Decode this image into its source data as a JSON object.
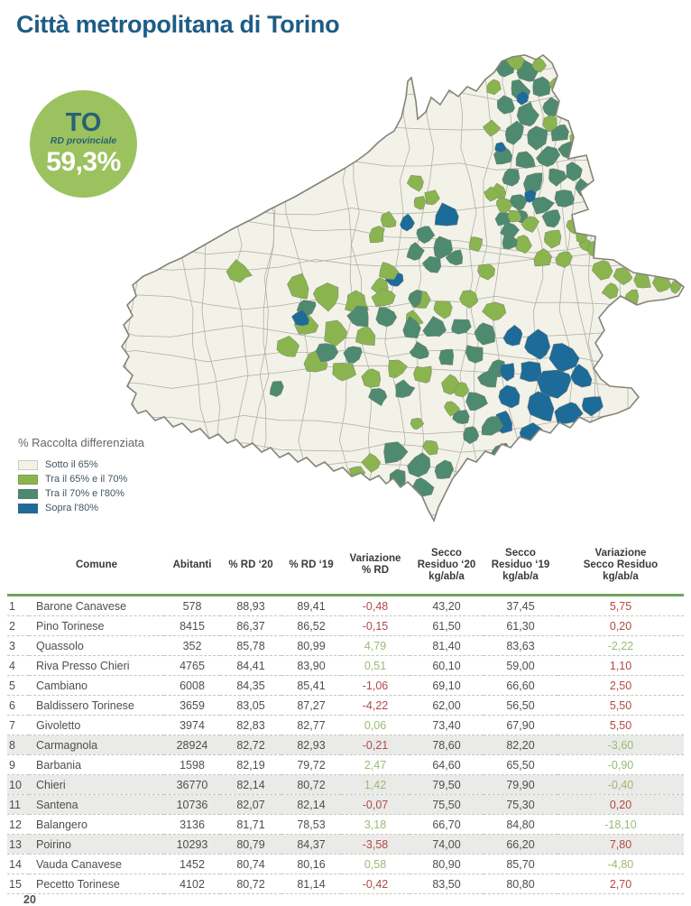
{
  "page": {
    "title": "Città metropolitana di Torino",
    "page_number": "20"
  },
  "badge": {
    "code": "TO",
    "label": "RD provinciale",
    "value": "59,3%"
  },
  "legend": {
    "title": "% Raccolta differenziata",
    "items": [
      {
        "label": "Sotto il 65%",
        "color": "#f2f2e8"
      },
      {
        "label": "Tra il 65% e il 70%",
        "color": "#8ab54e"
      },
      {
        "label": "Tra il 70% e l'80%",
        "color": "#4d8a6f"
      },
      {
        "label": "Sopra l'80%",
        "color": "#1d6b99"
      }
    ]
  },
  "map": {
    "region": "Città metropolitana di Torino"
  },
  "colors": {
    "title_blue": "#1d5c85",
    "badge_green": "#9cc25f",
    "header_rule_green": "#6fa55e",
    "positive_green": "#9cba74",
    "negative_red": "#b14a45",
    "map_cream": "#f2f2e8",
    "map_green": "#8ab54e",
    "map_teal": "#4d8a6f",
    "map_blue": "#1d6b99"
  },
  "table": {
    "columns": [
      {
        "key": "comune",
        "label": "Comune"
      },
      {
        "key": "abitanti",
        "label": "Abitanti"
      },
      {
        "key": "rd20",
        "label": "% RD ‘20"
      },
      {
        "key": "rd19",
        "label": "% RD ‘19"
      },
      {
        "key": "var_rd",
        "label": "Variazione\n% RD"
      },
      {
        "key": "secco20",
        "label": "Secco\nResiduo ‘20\nkg/ab/a"
      },
      {
        "key": "secco19",
        "label": "Secco\nResiduo ‘19\nkg/ab/a"
      },
      {
        "key": "var_secco",
        "label": "Variazione\nSecco Residuo\nkg/ab/a"
      }
    ],
    "rows": [
      {
        "n": 1,
        "comune": "Barone Canavese",
        "abitanti": "578",
        "rd20": "88,93",
        "rd19": "89,41",
        "var_rd": "-0,48",
        "secco20": "43,20",
        "secco19": "37,45",
        "var_secco": "5,75",
        "highlight": false
      },
      {
        "n": 2,
        "comune": "Pino Torinese",
        "abitanti": "8415",
        "rd20": "86,37",
        "rd19": "86,52",
        "var_rd": "-0,15",
        "secco20": "61,50",
        "secco19": "61,30",
        "var_secco": "0,20",
        "highlight": false
      },
      {
        "n": 3,
        "comune": "Quassolo",
        "abitanti": "352",
        "rd20": "85,78",
        "rd19": "80,99",
        "var_rd": "4,79",
        "secco20": "81,40",
        "secco19": "83,63",
        "var_secco": "-2,22",
        "highlight": false
      },
      {
        "n": 4,
        "comune": "Riva Presso Chieri",
        "abitanti": "4765",
        "rd20": "84,41",
        "rd19": "83,90",
        "var_rd": "0,51",
        "secco20": "60,10",
        "secco19": "59,00",
        "var_secco": "1,10",
        "highlight": false
      },
      {
        "n": 5,
        "comune": "Cambiano",
        "abitanti": "6008",
        "rd20": "84,35",
        "rd19": "85,41",
        "var_rd": "-1,06",
        "secco20": "69,10",
        "secco19": "66,60",
        "var_secco": "2,50",
        "highlight": false
      },
      {
        "n": 6,
        "comune": "Baldissero Torinese",
        "abitanti": "3659",
        "rd20": "83,05",
        "rd19": "87,27",
        "var_rd": "-4,22",
        "secco20": "62,00",
        "secco19": "56,50",
        "var_secco": "5,50",
        "highlight": false
      },
      {
        "n": 7,
        "comune": "Givoletto",
        "abitanti": "3974",
        "rd20": "82,83",
        "rd19": "82,77",
        "var_rd": "0,06",
        "secco20": "73,40",
        "secco19": "67,90",
        "var_secco": "5,50",
        "highlight": false
      },
      {
        "n": 8,
        "comune": "Carmagnola",
        "abitanti": "28924",
        "rd20": "82,72",
        "rd19": "82,93",
        "var_rd": "-0,21",
        "secco20": "78,60",
        "secco19": "82,20",
        "var_secco": "-3,60",
        "highlight": true
      },
      {
        "n": 9,
        "comune": "Barbania",
        "abitanti": "1598",
        "rd20": "82,19",
        "rd19": "79,72",
        "var_rd": "2,47",
        "secco20": "64,60",
        "secco19": "65,50",
        "var_secco": "-0,90",
        "highlight": false
      },
      {
        "n": 10,
        "comune": "Chieri",
        "abitanti": "36770",
        "rd20": "82,14",
        "rd19": "80,72",
        "var_rd": "1,42",
        "secco20": "79,50",
        "secco19": "79,90",
        "var_secco": "-0,40",
        "highlight": true
      },
      {
        "n": 11,
        "comune": "Santena",
        "abitanti": "10736",
        "rd20": "82,07",
        "rd19": "82,14",
        "var_rd": "-0,07",
        "secco20": "75,50",
        "secco19": "75,30",
        "var_secco": "0,20",
        "highlight": true
      },
      {
        "n": 12,
        "comune": "Balangero",
        "abitanti": "3136",
        "rd20": "81,71",
        "rd19": "78,53",
        "var_rd": "3,18",
        "secco20": "66,70",
        "secco19": "84,80",
        "var_secco": "-18,10",
        "highlight": false
      },
      {
        "n": 13,
        "comune": "Poirino",
        "abitanti": "10293",
        "rd20": "80,79",
        "rd19": "84,37",
        "var_rd": "-3,58",
        "secco20": "74,00",
        "secco19": "66,20",
        "var_secco": "7,80",
        "highlight": true
      },
      {
        "n": 14,
        "comune": "Vauda Canavese",
        "abitanti": "1452",
        "rd20": "80,74",
        "rd19": "80,16",
        "var_rd": "0,58",
        "secco20": "80,90",
        "secco19": "85,70",
        "var_secco": "-4,80",
        "highlight": false
      },
      {
        "n": 15,
        "comune": "Pecetto Torinese",
        "abitanti": "4102",
        "rd20": "80,72",
        "rd19": "81,14",
        "var_rd": "-0,42",
        "secco20": "83,50",
        "secco19": "80,80",
        "var_secco": "2,70",
        "highlight": false
      }
    ]
  }
}
